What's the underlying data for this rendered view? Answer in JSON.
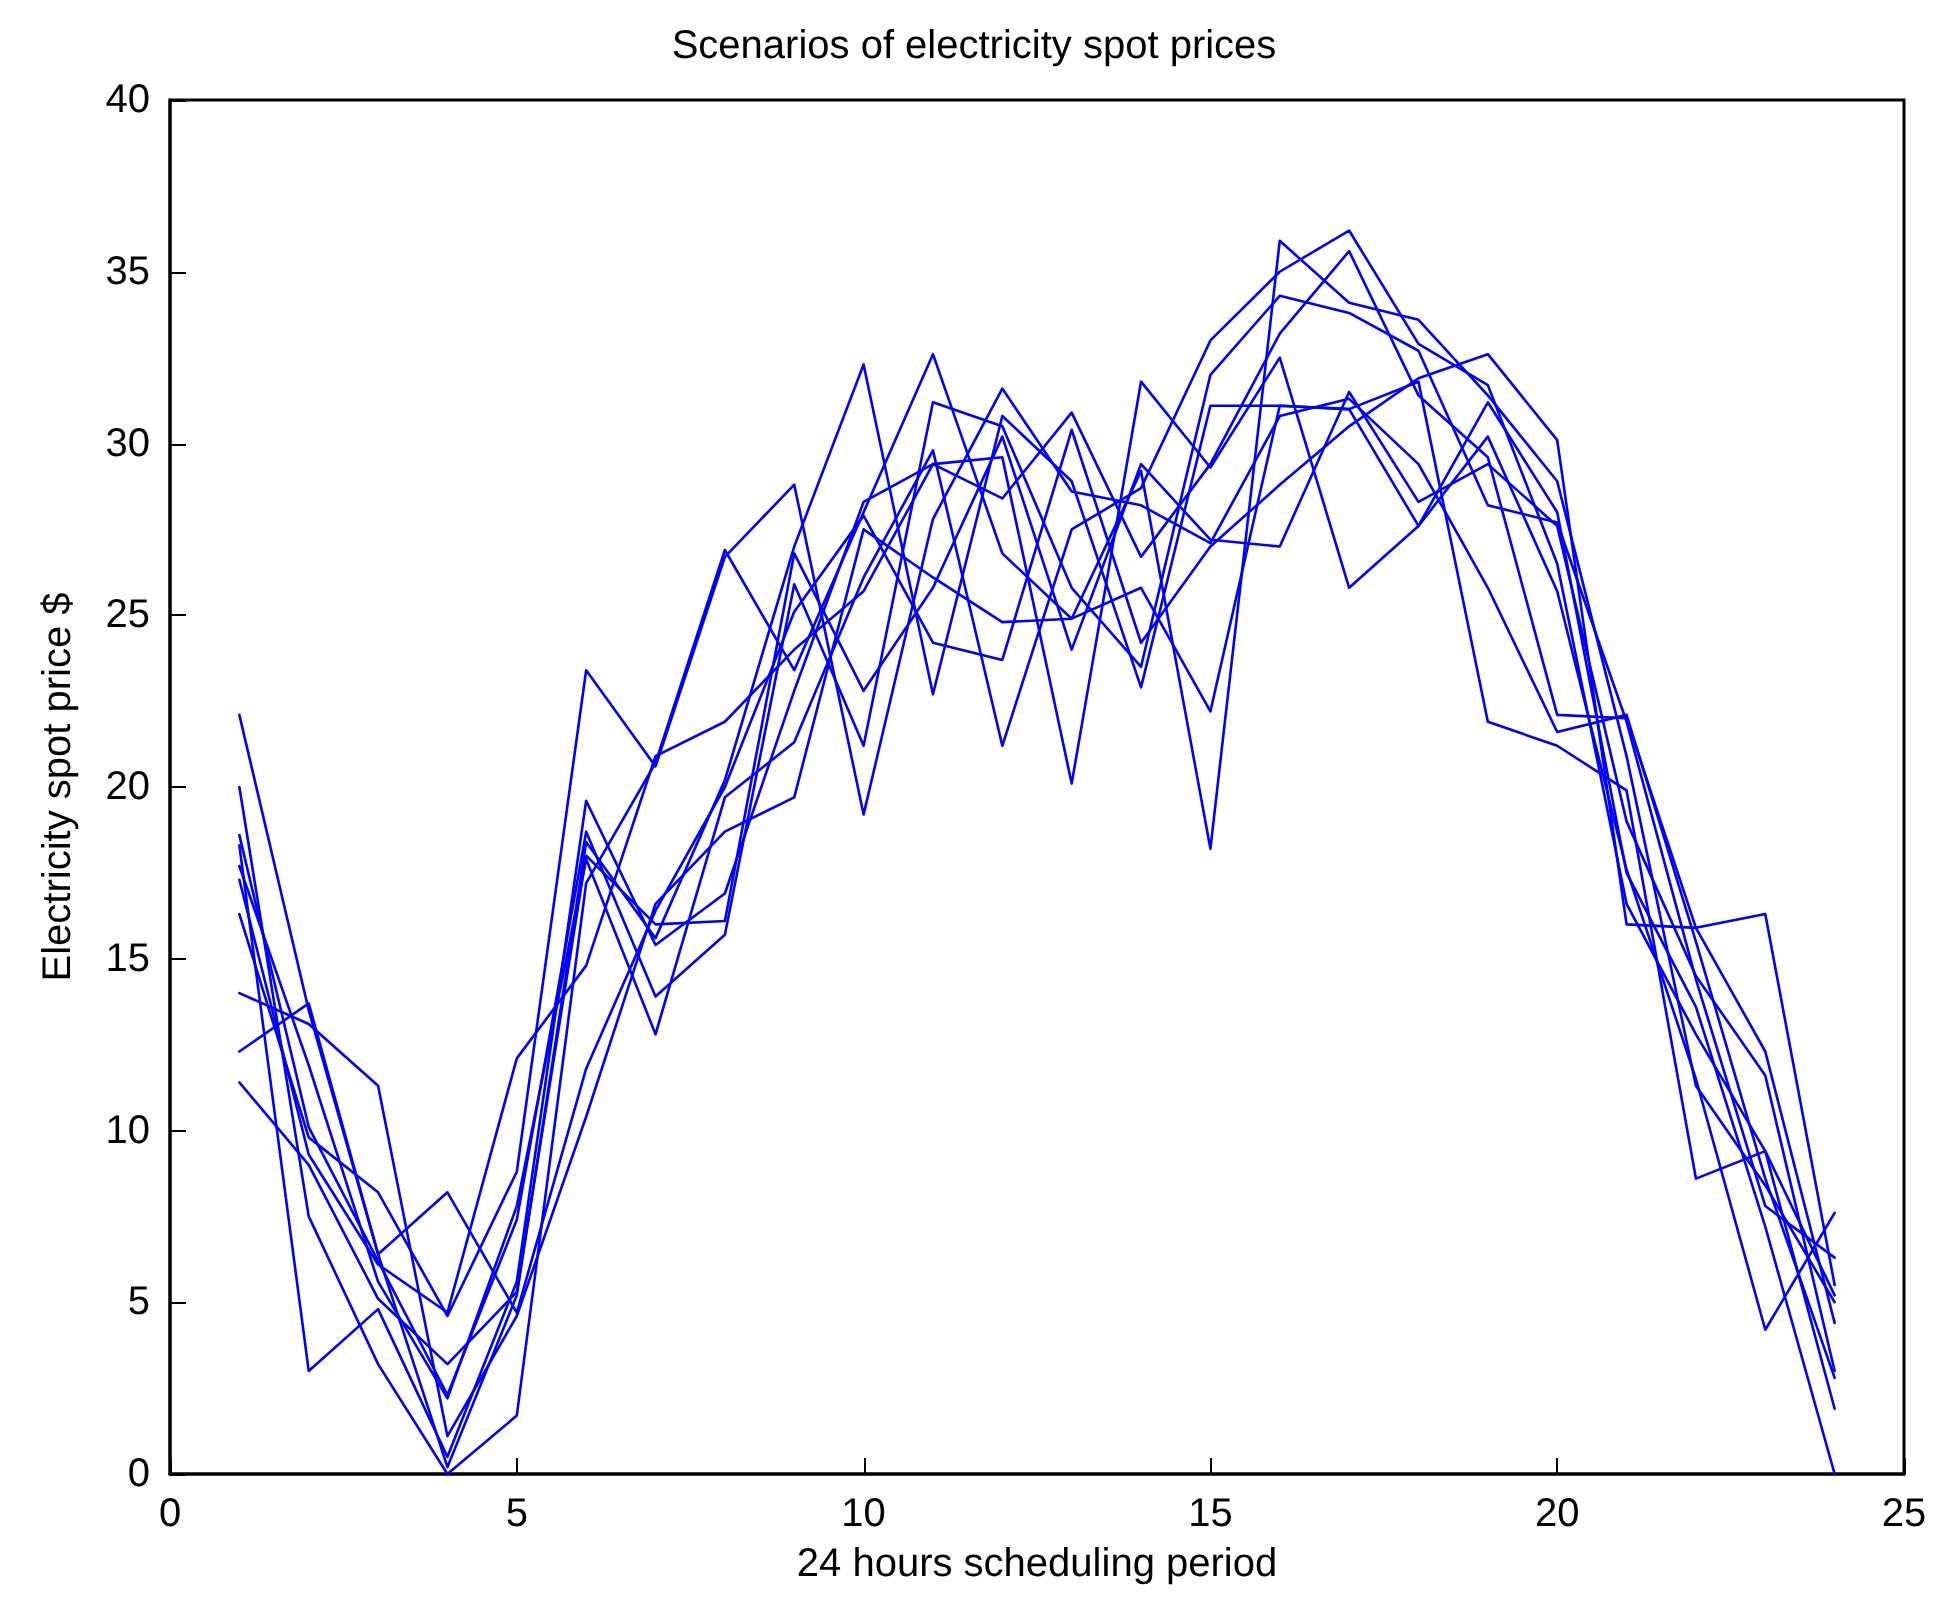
{
  "chart_data": {
    "type": "line",
    "title": "Scenarios of electricity spot prices",
    "xlabel": "24 hours scheduling period",
    "ylabel": "Electricity spot price $",
    "x": [
      1,
      2,
      3,
      4,
      5,
      6,
      7,
      8,
      9,
      10,
      11,
      12,
      13,
      14,
      15,
      16,
      17,
      18,
      19,
      20,
      21,
      22,
      23,
      24
    ],
    "xlim": [
      0,
      25
    ],
    "xticks": [
      0,
      5,
      10,
      15,
      20,
      25
    ],
    "ylim": [
      0,
      40
    ],
    "yticks": [
      0,
      5,
      10,
      15,
      20,
      25,
      30,
      35,
      40
    ],
    "grid": false,
    "marker": "none",
    "line_style": "solid",
    "series": [
      {
        "color": "#0000ff",
        "values": [
          22.1,
          13.5,
          6.4,
          0.2,
          5.2,
          18.4,
          15.6,
          20.2,
          27.0,
          32.3,
          22.7,
          30.8,
          28.9,
          22.9,
          31.1,
          31.1,
          31.0,
          27.6,
          31.2,
          28.0,
          17.5,
          13.6,
          7.2,
          0.0
        ]
      },
      {
        "color": "#0000ff",
        "values": [
          20.0,
          7.5,
          3.2,
          0.0,
          1.7,
          17.2,
          20.7,
          26.9,
          23.4,
          28.0,
          32.6,
          26.8,
          24.9,
          29.2,
          18.2,
          35.9,
          34.1,
          33.6,
          31.4,
          28.9,
          20.9,
          11.3,
          8.4,
          5.0
        ]
      },
      {
        "color": "#0000ff",
        "values": [
          18.6,
          10.1,
          6.2,
          2.3,
          7.4,
          18.7,
          13.9,
          15.7,
          25.9,
          21.2,
          31.2,
          30.5,
          25.8,
          23.5,
          32.0,
          34.3,
          33.8,
          32.7,
          28.2,
          27.7,
          21.9,
          14.4,
          7.8,
          6.3
        ]
      },
      {
        "color": "#0000ff",
        "values": [
          18.3,
          3.0,
          4.8,
          0.5,
          5.6,
          19.6,
          15.4,
          16.9,
          22.8,
          28.3,
          29.4,
          28.4,
          30.9,
          26.7,
          29.4,
          33.2,
          35.6,
          31.4,
          29.6,
          22.1,
          22.0,
          15.9,
          12.3,
          4.4
        ]
      },
      {
        "color": "#0000ff",
        "values": [
          17.7,
          11.9,
          5.6,
          2.2,
          7.8,
          17.9,
          12.8,
          19.7,
          21.3,
          26.1,
          29.8,
          21.2,
          27.5,
          28.7,
          33.0,
          35.0,
          36.2,
          32.9,
          31.7,
          26.5,
          16.6,
          12.8,
          9.4,
          5.2
        ]
      },
      {
        "color": "#0000ff",
        "values": [
          17.3,
          9.3,
          6.1,
          4.7,
          12.1,
          14.8,
          20.9,
          21.9,
          24.0,
          25.7,
          29.4,
          29.6,
          20.1,
          31.8,
          29.3,
          32.5,
          25.8,
          27.6,
          30.2,
          25.7,
          17.6,
          11.5,
          4.2,
          7.6
        ]
      },
      {
        "color": "#0000ff",
        "values": [
          16.3,
          9.8,
          8.2,
          4.6,
          8.8,
          23.4,
          20.6,
          26.7,
          28.8,
          19.2,
          27.8,
          31.6,
          28.6,
          28.2,
          27.1,
          30.8,
          31.3,
          29.4,
          25.8,
          21.6,
          22.1,
          15.5,
          8.6,
          2.8
        ]
      },
      {
        "color": "#0000ff",
        "values": [
          14.0,
          13.1,
          11.3,
          1.1,
          4.6,
          10.4,
          16.6,
          18.7,
          19.7,
          27.5,
          26.1,
          24.8,
          24.9,
          25.8,
          22.2,
          31.1,
          31.0,
          31.8,
          21.9,
          21.2,
          19.9,
          8.6,
          9.4,
          1.9
        ]
      },
      {
        "color": "#0000ff",
        "values": [
          12.3,
          13.7,
          6.4,
          8.2,
          4.7,
          11.8,
          16.4,
          20.0,
          25.1,
          27.9,
          24.2,
          23.7,
          30.4,
          24.2,
          27.0,
          28.8,
          30.5,
          31.9,
          32.6,
          30.1,
          16.0,
          15.9,
          16.3,
          5.5
        ]
      },
      {
        "color": "#0000ff",
        "values": [
          11.4,
          9.0,
          5.1,
          3.2,
          5.3,
          18.0,
          16.0,
          16.1,
          26.8,
          22.8,
          25.8,
          30.2,
          24.0,
          29.4,
          27.2,
          27.0,
          31.5,
          28.3,
          29.4,
          27.6,
          19.0,
          14.5,
          11.6,
          3.0
        ]
      }
    ]
  }
}
